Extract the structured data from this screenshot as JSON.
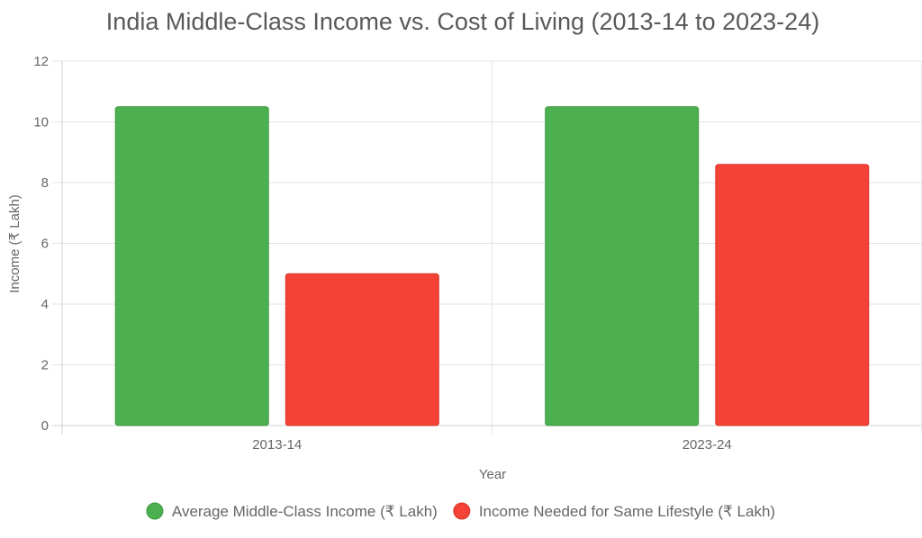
{
  "chart_data": {
    "type": "bar",
    "title": "India Middle-Class Income vs. Cost of Living (2013-14 to 2023-24)",
    "xlabel": "Year",
    "ylabel": "Income (₹ Lakh)",
    "categories": [
      "2013-14",
      "2023-24"
    ],
    "series": [
      {
        "name": "Average Middle-Class Income (₹ Lakh)",
        "values": [
          10.5,
          10.5
        ],
        "color": "#4caf50",
        "border": "#3d9a41"
      },
      {
        "name": "Income Needed for Same Lifestyle (₹ Lakh)",
        "values": [
          5.0,
          8.6
        ],
        "color": "#f44336",
        "border": "#d9342a"
      }
    ],
    "ylim": [
      0,
      12
    ],
    "yticks": [
      "0",
      "2",
      "4",
      "6",
      "8",
      "10",
      "12"
    ],
    "grid": true,
    "legend_position": "bottom"
  }
}
